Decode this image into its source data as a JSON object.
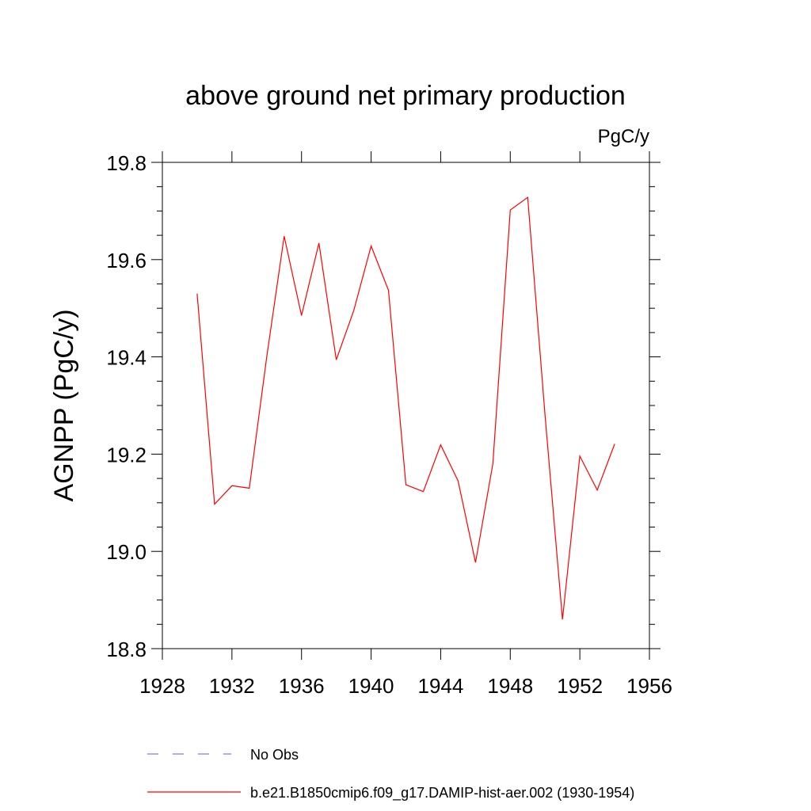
{
  "chart_data": {
    "type": "line",
    "title": "above ground net primary production",
    "units": "PgC/y",
    "ylabel": "AGNPP  (PgC/y)",
    "xlabel": "",
    "xlim": [
      1928,
      1956
    ],
    "ylim": [
      18.8,
      19.8
    ],
    "x_ticks": [
      1928,
      1932,
      1936,
      1940,
      1944,
      1948,
      1952,
      1956
    ],
    "y_ticks": [
      "18.8",
      "19.0",
      "19.2",
      "19.4",
      "19.6",
      "19.8"
    ],
    "grid": false,
    "legend_position": "bottom",
    "legend": [
      {
        "label": "No Obs",
        "color": "#7f7fd0",
        "style": "dashed"
      },
      {
        "label": "b.e21.B1850cmip6.f09_g17.DAMIP-hist-aer.002 (1930-1954)",
        "color": "#ff0000",
        "style": "solid"
      }
    ],
    "series": [
      {
        "name": "b.e21.B1850cmip6.f09_g17.DAMIP-hist-aer.002 (1930-1954)",
        "color": "#ff0000",
        "x": [
          1930,
          1931,
          1932,
          1933,
          1934,
          1935,
          1936,
          1937,
          1938,
          1939,
          1940,
          1941,
          1942,
          1943,
          1944,
          1945,
          1946,
          1947,
          1948,
          1949,
          1950,
          1951,
          1952,
          1953,
          1954
        ],
        "values": [
          19.53,
          19.097,
          19.135,
          19.13,
          19.4,
          19.648,
          19.485,
          19.634,
          19.394,
          19.495,
          19.628,
          19.537,
          19.137,
          19.123,
          19.219,
          19.145,
          18.977,
          19.18,
          19.702,
          19.728,
          19.28,
          18.86,
          19.196,
          19.126,
          19.221
        ]
      }
    ]
  }
}
